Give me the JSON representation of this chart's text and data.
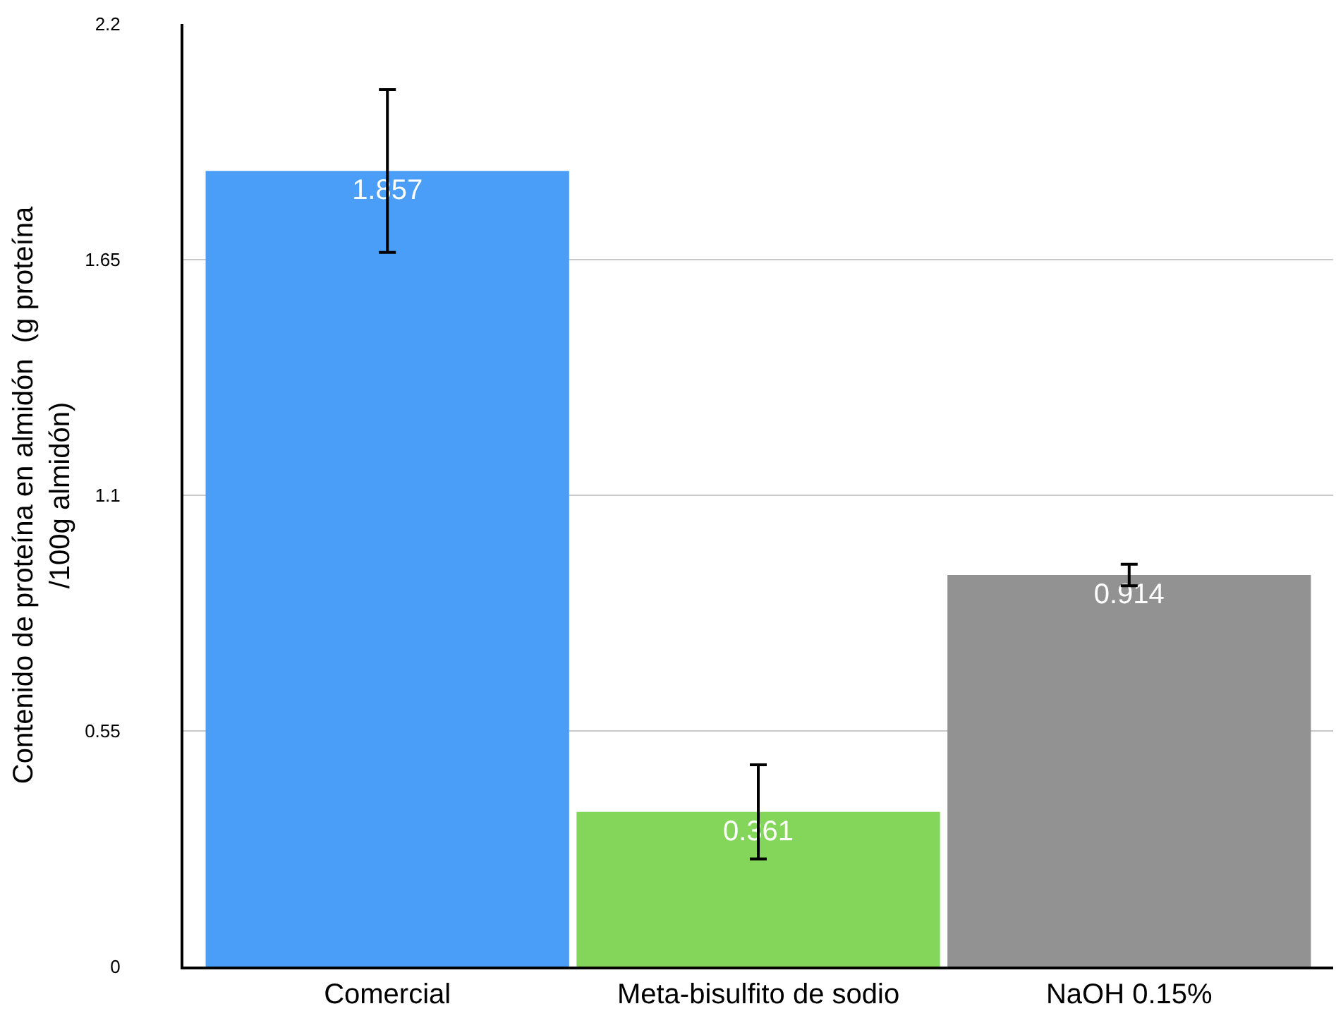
{
  "chart_data": {
    "type": "bar",
    "ylabel": "Contenido de proteína en almidón  (g proteína /100g almidón)",
    "categories": [
      "Comercial",
      "Meta-bisulfito de sodio",
      "NaOH 0.15%"
    ],
    "values": [
      1.857,
      0.361,
      0.914
    ],
    "colors": [
      "#4a9ef7",
      "#83d65a",
      "#929292"
    ],
    "errors": [
      0.19,
      0.11,
      0.025
    ],
    "data_labels": true,
    "ylim": [
      0,
      2.2
    ],
    "yticks": [
      0,
      0.55,
      1.1,
      1.65,
      2.2
    ],
    "grid": "y"
  }
}
